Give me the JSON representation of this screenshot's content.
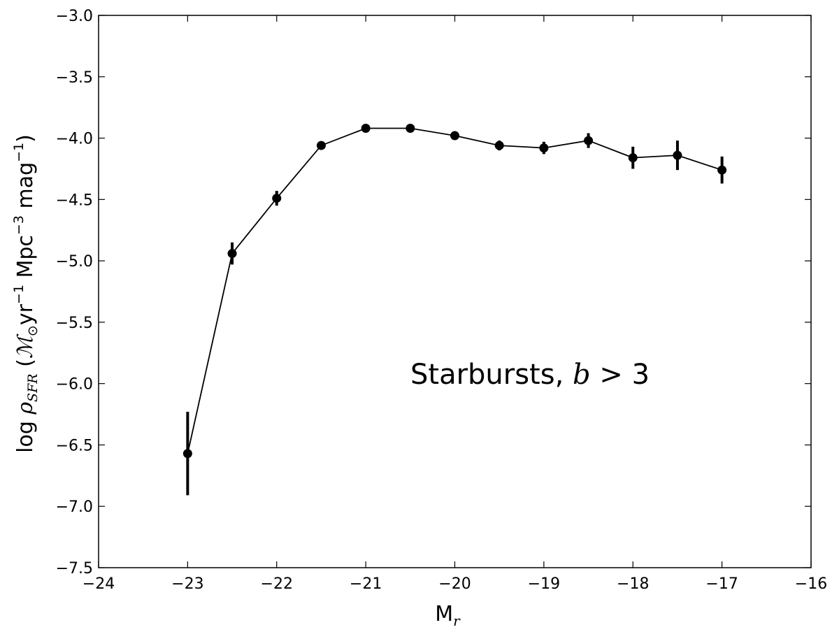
{
  "chart_data": {
    "type": "line",
    "xlabel": "M",
    "xlabel_sub": "r",
    "ylabel": {
      "prefix": "log ",
      "rho": "ρ",
      "rho_sub": "SFR",
      "open": " (",
      "mass": "ℳ",
      "sun": "⊙",
      "yr": "yr",
      "yr_exp": "−1",
      "mpc": " Mpc",
      "mpc_exp": "−3",
      "mag": " mag",
      "mag_exp": "−1",
      "close": ")"
    },
    "xlim": [
      -24,
      -16
    ],
    "ylim": [
      -7.5,
      -3.0
    ],
    "xticks": [
      -24,
      -23,
      -22,
      -21,
      -20,
      -19,
      -18,
      -17,
      -16
    ],
    "yticks": [
      -7.5,
      -7.0,
      -6.5,
      -6.0,
      -5.5,
      -5.0,
      -4.5,
      -4.0,
      -3.5,
      -3.0
    ],
    "xtick_labels": [
      "−24",
      "−23",
      "−22",
      "−21",
      "−20",
      "−19",
      "−18",
      "−17",
      "−16"
    ],
    "ytick_labels": [
      "−7.5",
      "−7.0",
      "−6.5",
      "−6.0",
      "−5.5",
      "−5.0",
      "−4.5",
      "−4.0",
      "−3.5",
      "−3.0"
    ],
    "grid": false,
    "series": [
      {
        "color": "#000000",
        "x": [
          -23.0,
          -22.5,
          -22.0,
          -21.5,
          -21.0,
          -20.5,
          -20.0,
          -19.5,
          -19.0,
          -18.5,
          -18.0,
          -17.5,
          -17.0
        ],
        "y": [
          -6.57,
          -4.94,
          -4.49,
          -4.06,
          -3.92,
          -3.92,
          -3.98,
          -4.06,
          -4.08,
          -4.02,
          -4.16,
          -4.14,
          -4.26
        ],
        "yerr": [
          0.34,
          0.09,
          0.06,
          0.03,
          0.02,
          0.02,
          0.03,
          0.04,
          0.05,
          0.06,
          0.09,
          0.12,
          0.11
        ]
      }
    ],
    "annotation": {
      "text": "Starbursts, ",
      "var": "b",
      "op": " > ",
      "value": "3"
    }
  }
}
